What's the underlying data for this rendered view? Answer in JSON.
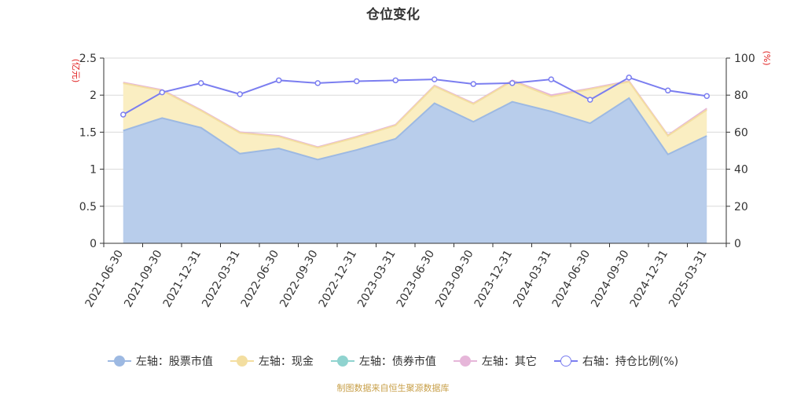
{
  "colors": {
    "stock": "#9db9e2",
    "stock_fill": "#b8cdeb",
    "cash_line": "#f3dea0",
    "cash_fill": "#faeec2",
    "bond": "#8fd3cf",
    "other": "#e6b6d9",
    "ratio": "#7b7ef0",
    "unit_red": "#e02020",
    "footer": "#c8a04a"
  },
  "chart_data": {
    "type": "area",
    "title": "仓位变化",
    "y_left_unit": "(亿元)",
    "y_right_unit": "(%)",
    "ylim_left": [
      0,
      2.5
    ],
    "yticks_left": [
      "0",
      "0.5",
      "1",
      "1.5",
      "2",
      "2.5"
    ],
    "ylim_right": [
      0,
      100
    ],
    "yticks_right": [
      "0",
      "20",
      "40",
      "60",
      "80",
      "100"
    ],
    "grid": true,
    "legend_position": "bottom",
    "categories": [
      "2021-06-30",
      "2021-09-30",
      "2021-12-31",
      "2022-03-31",
      "2022-06-30",
      "2022-09-30",
      "2022-12-31",
      "2023-03-31",
      "2023-06-30",
      "2023-09-30",
      "2023-12-31",
      "2024-03-31",
      "2024-06-30",
      "2024-09-30",
      "2024-12-31",
      "2025-03-31"
    ],
    "series": [
      {
        "name": "左轴：股票市值",
        "axis": "left",
        "style": "area",
        "color_key": "stock",
        "values": [
          1.52,
          1.69,
          1.56,
          1.21,
          1.28,
          1.13,
          1.26,
          1.41,
          1.89,
          1.64,
          1.91,
          1.78,
          1.62,
          1.96,
          1.2,
          1.45
        ]
      },
      {
        "name": "左轴：现金",
        "axis": "left",
        "style": "stacked-area",
        "color_key": "cash_line",
        "values": [
          0.64,
          0.37,
          0.23,
          0.28,
          0.16,
          0.16,
          0.17,
          0.18,
          0.23,
          0.24,
          0.28,
          0.2,
          0.46,
          0.22,
          0.25,
          0.35
        ]
      },
      {
        "name": "左轴：债券市值",
        "axis": "left",
        "style": "stacked-area",
        "color_key": "bond",
        "values": [
          0,
          0,
          0,
          0,
          0,
          0,
          0,
          0,
          0,
          0,
          0,
          0,
          0,
          0,
          0,
          0
        ]
      },
      {
        "name": "左轴：其它",
        "axis": "left",
        "style": "stacked-area",
        "color_key": "other",
        "values": [
          0.01,
          0.01,
          0.01,
          0.01,
          0.01,
          0.01,
          0.01,
          0.01,
          0.01,
          0.01,
          0.01,
          0.02,
          0.01,
          0.01,
          0.01,
          0.02
        ]
      },
      {
        "name": "右轴：持仓比例(%)",
        "axis": "right",
        "style": "line-markers",
        "color_key": "ratio",
        "values": [
          69.5,
          81.5,
          86.5,
          80.5,
          88.0,
          86.5,
          87.5,
          88.0,
          88.5,
          86.0,
          86.5,
          88.5,
          77.5,
          89.5,
          82.5,
          79.5
        ]
      }
    ]
  },
  "legend": [
    {
      "label": "左轴：股票市值",
      "color_key": "stock"
    },
    {
      "label": "左轴：现金",
      "color_key": "cash_line"
    },
    {
      "label": "左轴：债券市值",
      "color_key": "bond"
    },
    {
      "label": "左轴：其它",
      "color_key": "other"
    },
    {
      "label": "右轴：持仓比例(%)",
      "color_key": "ratio"
    }
  ],
  "footer": "制图数据来自恒生聚源数据库"
}
